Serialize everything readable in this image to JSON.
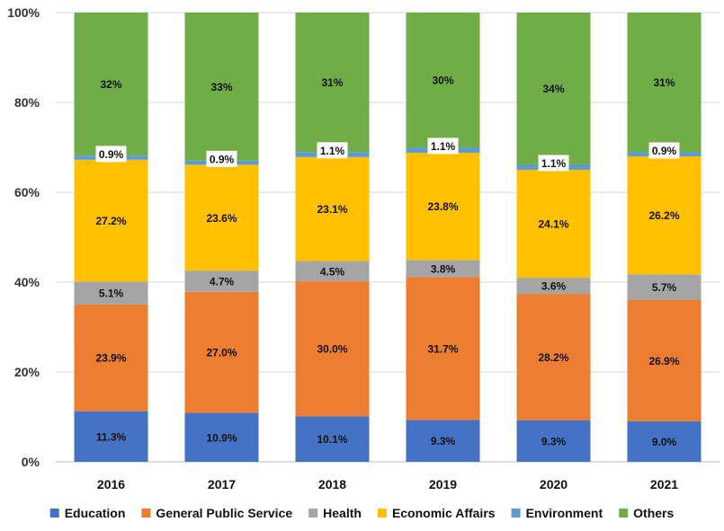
{
  "chart_data": {
    "type": "bar",
    "stacked": true,
    "percent_stacked": true,
    "title": "",
    "xlabel": "",
    "ylabel": "",
    "ylim": [
      0,
      100
    ],
    "y_ticks": [
      "0%",
      "20%",
      "40%",
      "60%",
      "80%",
      "100%"
    ],
    "grid": true,
    "legend_position": "bottom",
    "categories": [
      "2016",
      "2017",
      "2018",
      "2019",
      "2020",
      "2021"
    ],
    "series": [
      {
        "name": "Education",
        "color": "#4472C4",
        "values": [
          11.3,
          10.9,
          10.1,
          9.3,
          9.3,
          9.0
        ],
        "labels": [
          "11.3%",
          "10.9%",
          "10.1%",
          "9.3%",
          "9.3%",
          "9.0%"
        ]
      },
      {
        "name": "General Public Service",
        "color": "#ED7D31",
        "values": [
          23.9,
          27.0,
          30.0,
          31.7,
          28.2,
          26.9
        ],
        "labels": [
          "23.9%",
          "27.0%",
          "30.0%",
          "31.7%",
          "28.2%",
          "26.9%"
        ]
      },
      {
        "name": "Health",
        "color": "#A5A5A5",
        "values": [
          5.1,
          4.7,
          4.5,
          3.8,
          3.6,
          5.7
        ],
        "labels": [
          "5.1%",
          "4.7%",
          "4.5%",
          "3.8%",
          "3.6%",
          "5.7%"
        ]
      },
      {
        "name": "Economic Affairs",
        "color": "#FFC000",
        "values": [
          27.2,
          23.6,
          23.1,
          23.8,
          24.1,
          26.2
        ],
        "labels": [
          "27.2%",
          "23.6%",
          "23.1%",
          "23.8%",
          "24.1%",
          "26.2%"
        ]
      },
      {
        "name": "Environment",
        "color": "#5B9BD5",
        "values": [
          0.9,
          0.9,
          1.1,
          1.1,
          1.1,
          0.9
        ],
        "labels": [
          "0.9%",
          "0.9%",
          "1.1%",
          "1.1%",
          "1.1%",
          "0.9%"
        ]
      },
      {
        "name": "Others",
        "color": "#70AD47",
        "values": [
          32,
          33,
          31,
          30,
          34,
          31
        ],
        "labels": [
          "32%",
          "33%",
          "31%",
          "30%",
          "34%",
          "31%"
        ]
      }
    ]
  }
}
